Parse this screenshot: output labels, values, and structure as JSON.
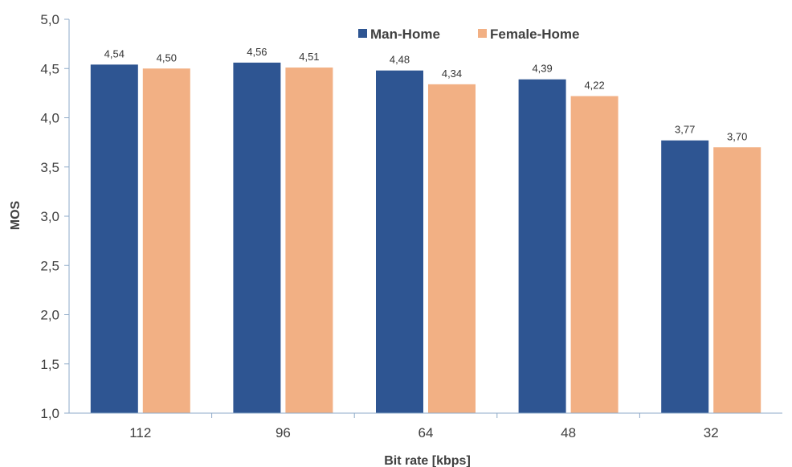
{
  "chart_data": {
    "type": "bar",
    "categories": [
      "112",
      "96",
      "64",
      "48",
      "32"
    ],
    "series": [
      {
        "name": "Man-Home",
        "values": [
          4.54,
          4.56,
          4.48,
          4.39,
          3.77
        ],
        "labels": [
          "4,54",
          "4,56",
          "4,48",
          "4,39",
          "3,77"
        ],
        "color": "#2e5592"
      },
      {
        "name": "Female-Home",
        "values": [
          4.5,
          4.51,
          4.34,
          4.22,
          3.7
        ],
        "labels": [
          "4,50",
          "4,51",
          "4,34",
          "4,22",
          "3,70"
        ],
        "color": "#f2b084"
      }
    ],
    "xlabel": "Bit rate [kbps]",
    "ylabel": "MOS",
    "ylim": [
      1.0,
      5.0
    ],
    "yticks": [
      1.0,
      1.5,
      2.0,
      2.5,
      3.0,
      3.5,
      4.0,
      4.5,
      5.0
    ],
    "ytick_labels": [
      "1,0",
      "1,5",
      "2,0",
      "2,5",
      "3,0",
      "3,5",
      "4,0",
      "4,5",
      "5,0"
    ],
    "grid": false,
    "legend_position": "top-center",
    "axis_color": "#8eaac8"
  }
}
